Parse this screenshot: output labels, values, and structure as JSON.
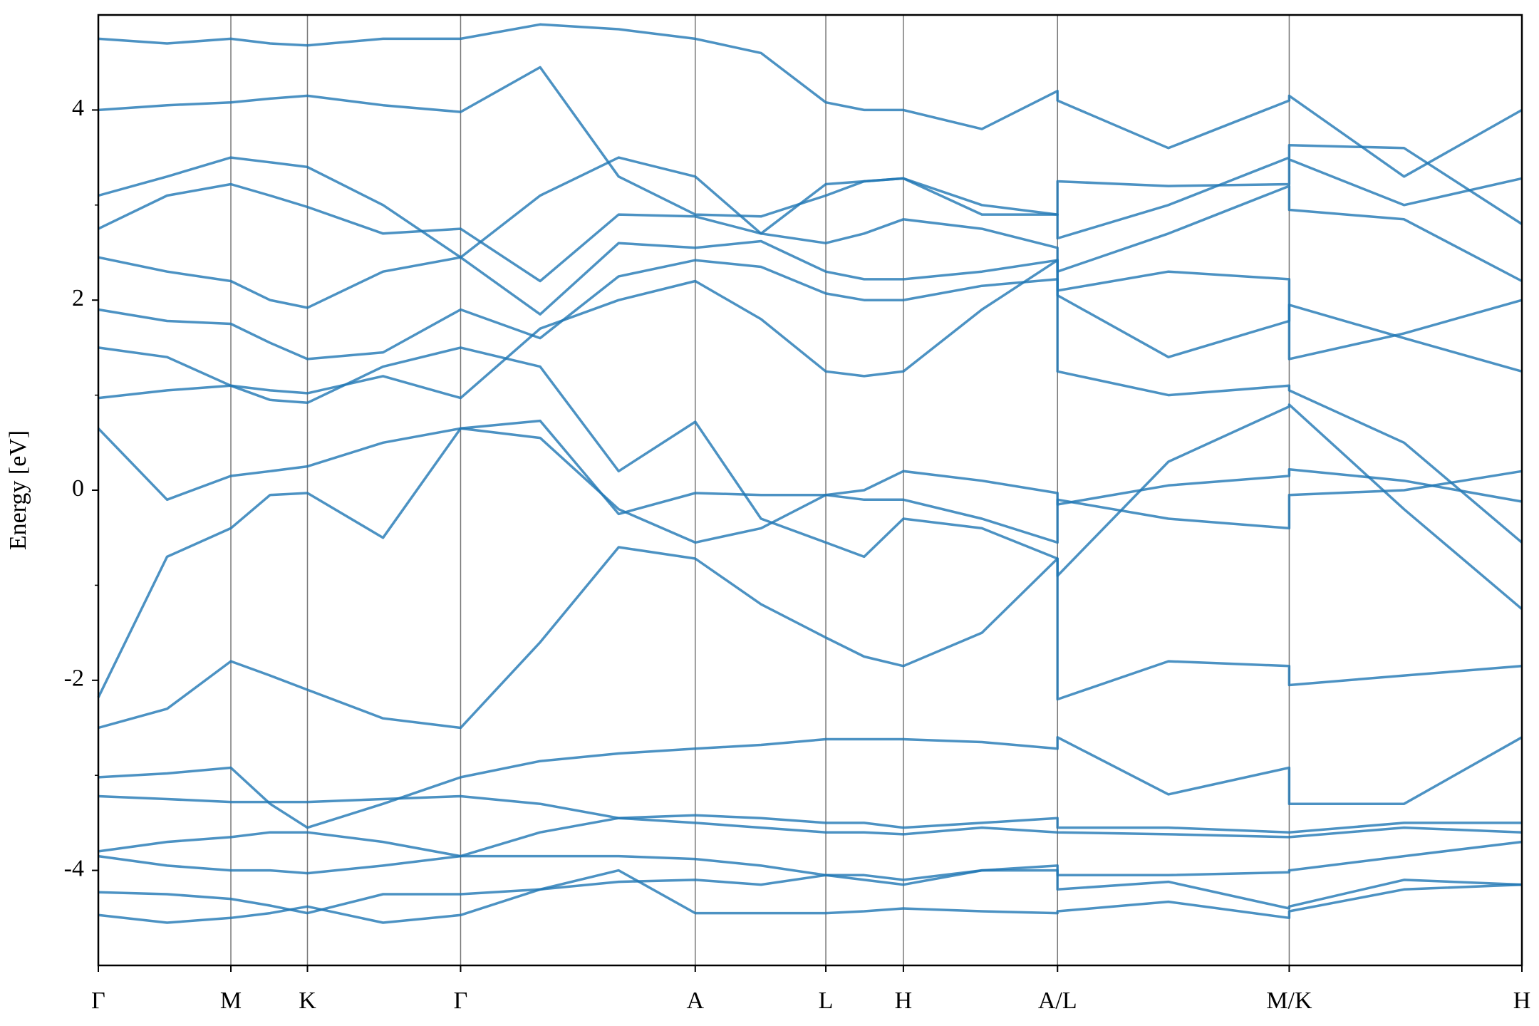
{
  "chart_data": {
    "type": "line",
    "ylabel": "Energy [eV]",
    "xlim": [
      0,
      14.5
    ],
    "ylim": [
      -5,
      5
    ],
    "xticks": [
      {
        "value": 0,
        "label": "Γ"
      },
      {
        "value": 1.35,
        "label": "M"
      },
      {
        "value": 2.13,
        "label": "K"
      },
      {
        "value": 3.69,
        "label": "Γ"
      },
      {
        "value": 6.08,
        "label": "A"
      },
      {
        "value": 7.41,
        "label": "L"
      },
      {
        "value": 8.2,
        "label": "H"
      },
      {
        "value": 9.77,
        "label": "A/L"
      },
      {
        "value": 12.13,
        "label": "M/K"
      },
      {
        "value": 14.5,
        "label": "H"
      }
    ],
    "yticks": [
      -4,
      -2,
      0,
      2,
      4
    ],
    "yminor_ticks": [
      -3,
      -1,
      1,
      3
    ],
    "xgrid": true,
    "x": [
      0,
      0.7,
      1.35,
      1.75,
      2.13,
      2.9,
      3.69,
      4.5,
      5.3,
      6.08,
      6.75,
      7.41,
      7.8,
      8.2,
      9.0,
      9.77,
      9.77,
      10.9,
      12.13,
      12.13,
      13.3,
      14.5
    ],
    "series": [
      {
        "color": "#1f77b4",
        "values": [
          -4.47,
          -4.55,
          -4.5,
          -4.45,
          -4.38,
          -4.55,
          -4.47,
          -4.2,
          -4.0,
          -4.45,
          -4.45,
          -4.45,
          -4.43,
          -4.4,
          -4.43,
          -4.45,
          -4.43,
          -4.33,
          -4.5,
          -4.43,
          -4.2,
          -4.15
        ]
      },
      {
        "color": "#1f77b4",
        "values": [
          -4.23,
          -4.25,
          -4.3,
          -4.37,
          -4.45,
          -4.25,
          -4.25,
          -4.2,
          -4.12,
          -4.1,
          -4.15,
          -4.05,
          -4.1,
          -4.15,
          -4.0,
          -4.0,
          -4.2,
          -4.12,
          -4.4,
          -4.38,
          -4.1,
          -4.15
        ]
      },
      {
        "color": "#1f77b4",
        "values": [
          -3.85,
          -3.95,
          -4.0,
          -4.0,
          -4.03,
          -3.95,
          -3.85,
          -3.85,
          -3.85,
          -3.88,
          -3.95,
          -4.05,
          -4.05,
          -4.1,
          -4.0,
          -3.95,
          -4.05,
          -4.05,
          -4.02,
          -4.0,
          -3.85,
          -3.7
        ]
      },
      {
        "color": "#1f77b4",
        "values": [
          -3.8,
          -3.7,
          -3.65,
          -3.6,
          -3.6,
          -3.7,
          -3.85,
          -3.6,
          -3.45,
          -3.42,
          -3.45,
          -3.5,
          -3.5,
          -3.55,
          -3.5,
          -3.45,
          -3.55,
          -3.55,
          -3.6,
          -3.6,
          -3.5,
          -3.5
        ]
      },
      {
        "color": "#1f77b4",
        "values": [
          -3.22,
          -3.25,
          -3.28,
          -3.28,
          -3.28,
          -3.25,
          -3.22,
          -3.3,
          -3.45,
          -3.5,
          -3.55,
          -3.6,
          -3.6,
          -3.62,
          -3.55,
          -3.6,
          -3.6,
          -3.62,
          -3.65,
          -3.65,
          -3.55,
          -3.6
        ]
      },
      {
        "color": "#1f77b4",
        "values": [
          -3.02,
          -2.98,
          -2.92,
          -3.3,
          -3.55,
          -3.3,
          -3.02,
          -2.85,
          -2.77,
          -2.72,
          -2.68,
          -2.62,
          -2.62,
          -2.62,
          -2.65,
          -2.72,
          -2.6,
          -3.2,
          -2.92,
          -3.3,
          -3.3,
          -2.6
        ]
      },
      {
        "color": "#1f77b4",
        "values": [
          -2.5,
          -2.3,
          -1.8,
          -1.95,
          -2.1,
          -2.4,
          -2.5,
          -1.6,
          -0.6,
          -0.72,
          -1.2,
          -1.55,
          -1.75,
          -1.85,
          -1.5,
          -0.72,
          -2.2,
          -1.8,
          -1.85,
          -2.05,
          -1.95,
          -1.85
        ]
      },
      {
        "color": "#1f77b4",
        "values": [
          -2.18,
          -0.7,
          -0.4,
          -0.05,
          -0.03,
          -0.5,
          0.65,
          0.73,
          -0.25,
          -0.03,
          -0.05,
          -0.05,
          0.0,
          0.2,
          0.1,
          -0.03,
          -0.15,
          0.05,
          0.15,
          0.22,
          0.1,
          -0.12
        ]
      },
      {
        "color": "#1f77b4",
        "values": [
          0.65,
          -0.1,
          0.15,
          0.2,
          0.25,
          0.5,
          0.65,
          0.55,
          -0.2,
          -0.55,
          -0.4,
          -0.05,
          -0.1,
          -0.1,
          -0.3,
          -0.55,
          -0.1,
          -0.3,
          -0.4,
          -0.05,
          0.0,
          0.2
        ]
      },
      {
        "color": "#1f77b4",
        "values": [
          0.97,
          1.05,
          1.1,
          0.95,
          0.92,
          1.3,
          1.5,
          1.3,
          0.2,
          0.72,
          -0.3,
          -0.55,
          -0.7,
          -0.3,
          -0.4,
          -0.72,
          -0.9,
          0.3,
          0.88,
          0.9,
          -0.2,
          -1.25
        ]
      },
      {
        "color": "#1f77b4",
        "values": [
          1.5,
          1.4,
          1.1,
          1.05,
          1.02,
          1.2,
          0.97,
          1.7,
          2.0,
          2.2,
          1.8,
          1.25,
          1.2,
          1.25,
          1.9,
          2.42,
          1.25,
          1.0,
          1.1,
          1.05,
          0.5,
          -0.55
        ]
      },
      {
        "color": "#1f77b4",
        "values": [
          1.9,
          1.78,
          1.75,
          1.55,
          1.38,
          1.45,
          1.9,
          1.6,
          2.25,
          2.42,
          2.35,
          2.07,
          2.0,
          2.0,
          2.15,
          2.22,
          2.05,
          1.4,
          1.78,
          1.95,
          1.6,
          1.25
        ]
      },
      {
        "color": "#1f77b4",
        "values": [
          2.45,
          2.3,
          2.2,
          2.0,
          1.92,
          2.3,
          2.45,
          1.85,
          2.6,
          2.55,
          2.62,
          2.3,
          2.22,
          2.22,
          2.3,
          2.42,
          2.1,
          2.3,
          2.22,
          1.38,
          1.65,
          2.0
        ]
      },
      {
        "color": "#1f77b4",
        "values": [
          2.75,
          3.1,
          3.22,
          3.1,
          2.98,
          2.7,
          2.75,
          2.2,
          2.9,
          2.88,
          2.7,
          2.6,
          2.7,
          2.85,
          2.75,
          2.55,
          2.3,
          2.7,
          3.2,
          2.95,
          2.85,
          2.2
        ]
      },
      {
        "color": "#1f77b4",
        "values": [
          3.1,
          3.3,
          3.5,
          3.45,
          3.4,
          3.0,
          2.45,
          3.1,
          3.5,
          3.3,
          2.7,
          3.22,
          3.25,
          3.28,
          2.9,
          2.9,
          2.65,
          3.0,
          3.5,
          3.63,
          3.6,
          2.8
        ]
      },
      {
        "color": "#1f77b4",
        "values": [
          4.0,
          4.05,
          4.08,
          4.12,
          4.15,
          4.05,
          3.98,
          4.45,
          3.3,
          2.9,
          2.88,
          3.1,
          3.25,
          3.28,
          3.0,
          2.9,
          3.25,
          3.2,
          3.22,
          3.48,
          3.0,
          3.28
        ]
      },
      {
        "color": "#1f77b4",
        "values": [
          4.75,
          4.7,
          4.75,
          4.7,
          4.68,
          4.75,
          4.75,
          4.9,
          4.85,
          4.75,
          4.6,
          4.08,
          4.0,
          4.0,
          3.8,
          4.2,
          4.1,
          3.6,
          4.1,
          4.15,
          3.3,
          4.0
        ]
      }
    ]
  }
}
